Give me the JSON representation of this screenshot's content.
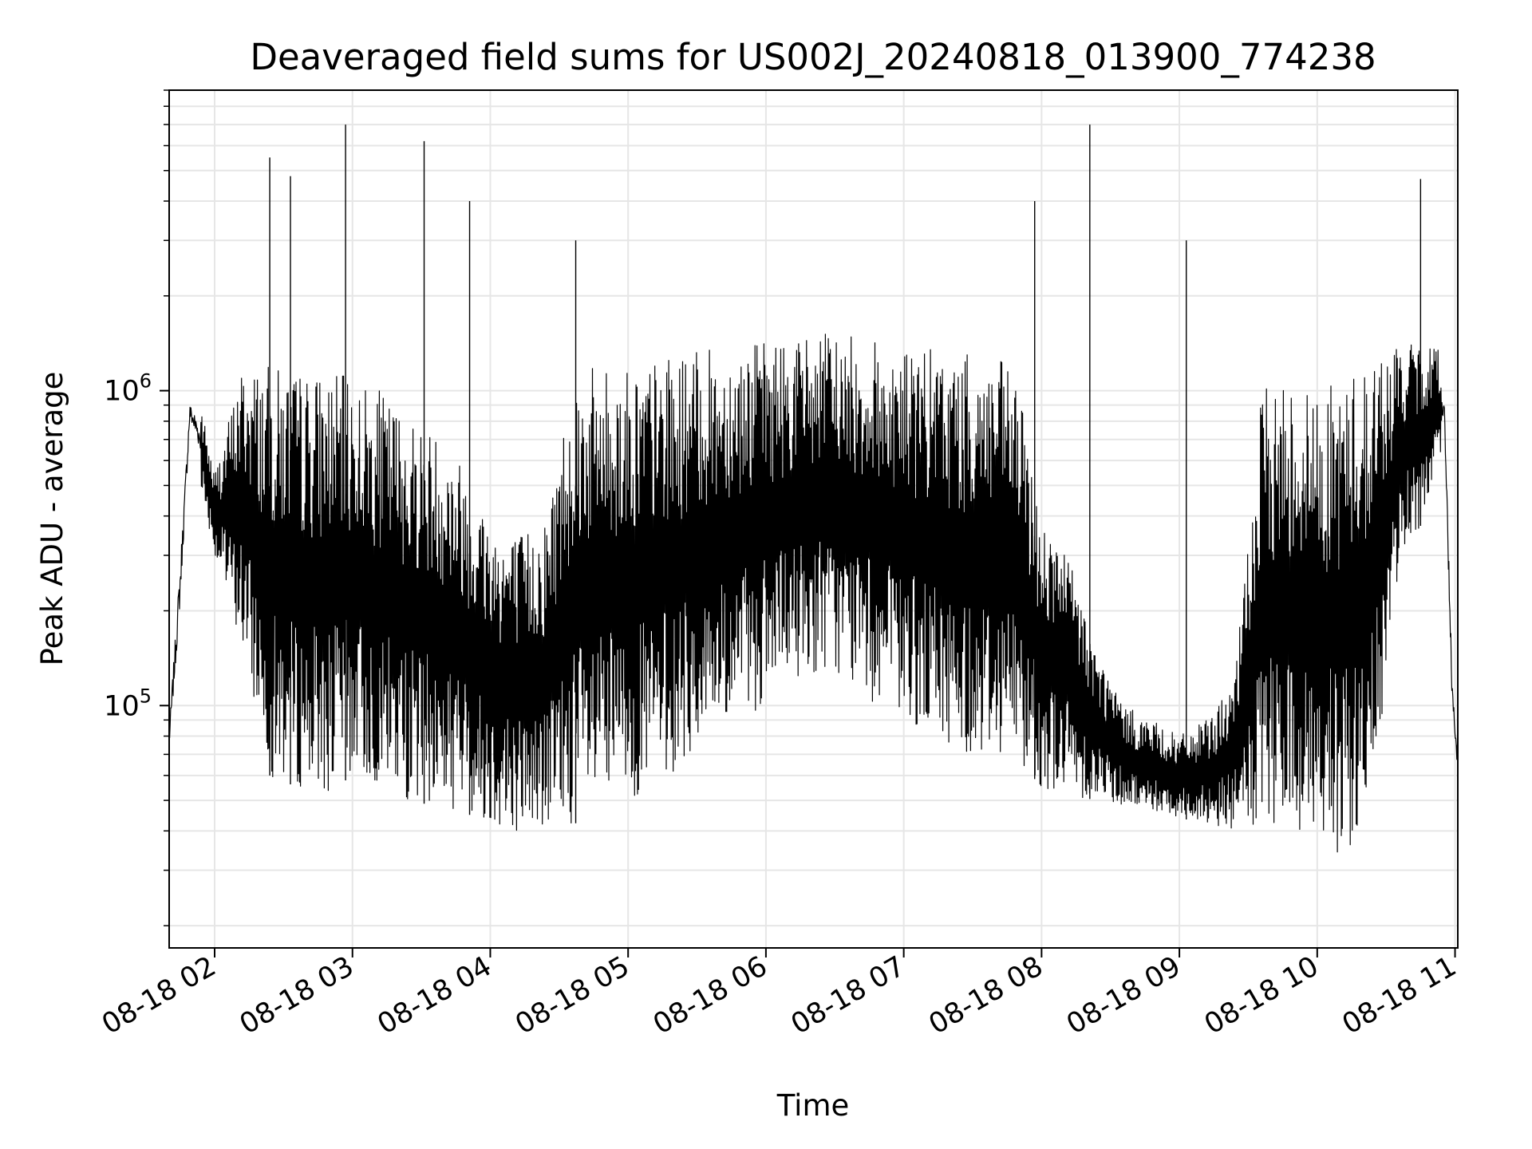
{
  "chart_data": {
    "type": "line",
    "title": "Deaveraged field sums for US002J_20240818_013900_774238",
    "xlabel": "Time",
    "ylabel": "Peak ADU - average",
    "x_ticks": [
      "08-18 02",
      "08-18 03",
      "08-18 04",
      "08-18 05",
      "08-18 06",
      "08-18 07",
      "08-18 08",
      "08-18 09",
      "08-18 10",
      "08-18 11"
    ],
    "x_range_hours": [
      1.67,
      11.02
    ],
    "y_scale": "log",
    "ylim": [
      17000,
      9000000
    ],
    "y_ticks": [
      {
        "base": "10",
        "exp": "5",
        "value": 100000
      },
      {
        "base": "10",
        "exp": "6",
        "value": 1000000
      }
    ],
    "grid": true,
    "line_color": "#000000",
    "grid_color": "#e6e6e6",
    "series": [
      {
        "envelope_hours": [
          1.67,
          1.75,
          1.82,
          1.88,
          2.0,
          2.2,
          2.4,
          2.6,
          2.8,
          3.0,
          3.2,
          3.4,
          3.6,
          3.8,
          4.0,
          4.2,
          4.4,
          4.6,
          4.8,
          5.0,
          5.2,
          5.4,
          5.6,
          5.8,
          6.0,
          6.2,
          6.4,
          6.6,
          6.8,
          7.0,
          7.2,
          7.4,
          7.6,
          7.8,
          8.0,
          8.2,
          8.4,
          8.6,
          8.8,
          9.0,
          9.2,
          9.4,
          9.6,
          9.8,
          10.0,
          10.2,
          10.4,
          10.6,
          10.8,
          10.92,
          10.98,
          11.02
        ],
        "envelope_low": [
          60000,
          150000,
          700000,
          550000,
          300000,
          150000,
          60000,
          55000,
          52000,
          60000,
          55000,
          50000,
          48000,
          46000,
          42000,
          40000,
          40000,
          42000,
          45000,
          50000,
          55000,
          65000,
          80000,
          90000,
          100000,
          120000,
          130000,
          120000,
          100000,
          90000,
          80000,
          70000,
          70000,
          70000,
          55000,
          52000,
          50000,
          48000,
          46000,
          44000,
          42000,
          40000,
          38000,
          40000,
          35000,
          32000,
          45000,
          300000,
          400000,
          600000,
          80000,
          50000
        ],
        "envelope_high": [
          100000,
          400000,
          1050000,
          1000000,
          550000,
          1200000,
          1200000,
          1150000,
          1150000,
          1100000,
          1000000,
          850000,
          750000,
          600000,
          400000,
          350000,
          400000,
          1150000,
          1200000,
          1200000,
          1250000,
          1300000,
          1350000,
          1400000,
          1450000,
          1500000,
          1550000,
          1500000,
          1450000,
          1400000,
          1350000,
          1300000,
          1300000,
          1200000,
          400000,
          300000,
          150000,
          100000,
          90000,
          80000,
          90000,
          120000,
          1000000,
          1100000,
          1000000,
          1100000,
          1300000,
          1400000,
          1400000,
          1450000,
          150000,
          90000
        ],
        "spikes": [
          {
            "x": 2.4,
            "y": 5500000
          },
          {
            "x": 2.55,
            "y": 4800000
          },
          {
            "x": 2.95,
            "y": 7000000
          },
          {
            "x": 3.52,
            "y": 6200000
          },
          {
            "x": 3.85,
            "y": 4000000
          },
          {
            "x": 4.62,
            "y": 3000000
          },
          {
            "x": 7.95,
            "y": 4000000
          },
          {
            "x": 8.35,
            "y": 7000000
          },
          {
            "x": 9.05,
            "y": 3000000
          },
          {
            "x": 10.75,
            "y": 4700000
          }
        ]
      }
    ]
  }
}
